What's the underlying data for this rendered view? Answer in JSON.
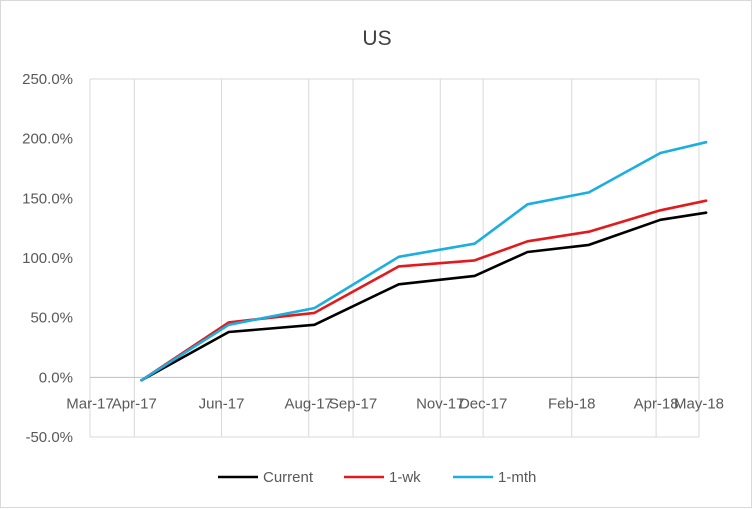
{
  "chart_data": {
    "type": "line",
    "title": "US",
    "xlabel": "",
    "ylabel": "",
    "x_axis": {
      "type": "date",
      "range": [
        "2017-03-01",
        "2018-05-01"
      ],
      "tick_dates": [
        "2017-03-01",
        "2017-04-01",
        "2017-06-01",
        "2017-08-01",
        "2017-09-01",
        "2017-11-01",
        "2017-12-01",
        "2018-02-01",
        "2018-04-01",
        "2018-05-01"
      ],
      "tick_labels": [
        "Mar-17",
        "Apr-17",
        "Jun-17",
        "Aug-17",
        "Sep-17",
        "Nov-17",
        "Dec-17",
        "Feb-18",
        "Apr-18",
        "May-18"
      ]
    },
    "y_axis": {
      "range": [
        -50,
        250
      ],
      "ticks": [
        -50,
        0,
        50,
        100,
        150,
        200,
        250
      ],
      "tick_labels": [
        "-50.0%",
        "0.0%",
        "50.0%",
        "100.0%",
        "150.0%",
        "200.0%",
        "250.0%"
      ],
      "unit": "%"
    },
    "grid": "vertical",
    "legend": "bottom",
    "x": [
      "2017-04-06",
      "2017-06-06",
      "2017-08-05",
      "2017-10-03",
      "2017-11-25",
      "2018-01-01",
      "2018-02-13",
      "2018-04-04",
      "2018-05-06"
    ],
    "series": [
      {
        "name": "Current",
        "color": "#000000",
        "values": [
          -2.5,
          38,
          44,
          78,
          85,
          105,
          111,
          132,
          138
        ]
      },
      {
        "name": "1-wk",
        "color": "#e31a1c",
        "values": [
          -2.5,
          46,
          54,
          93,
          98,
          114,
          122,
          140,
          148
        ]
      },
      {
        "name": "1-mth",
        "color": "#1aafe0",
        "values": [
          -2.5,
          44,
          58,
          101,
          112,
          145,
          155,
          188,
          197
        ]
      }
    ]
  }
}
